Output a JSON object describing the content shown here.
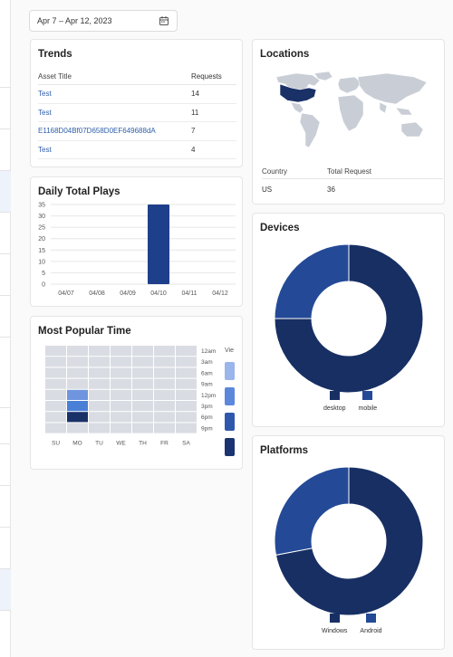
{
  "date_range": {
    "label": "Apr 7 – Apr 12, 2023"
  },
  "trends": {
    "title": "Trends",
    "col_asset": "Asset Title",
    "col_requests": "Requests",
    "rows": [
      {
        "asset": "Test",
        "requests": "14"
      },
      {
        "asset": "Test",
        "requests": "11"
      },
      {
        "asset": "E1168D04Bf07D658D0EF649688dA",
        "requests": "7"
      },
      {
        "asset": "Test",
        "requests": "4"
      }
    ]
  },
  "daily": {
    "title": "Daily Total Plays",
    "chart_data": {
      "type": "bar",
      "categories": [
        "04/07",
        "04/08",
        "04/09",
        "04/10",
        "04/11",
        "04/12"
      ],
      "values": [
        0,
        0,
        0,
        35,
        0,
        0
      ],
      "ylim": [
        0,
        35
      ],
      "yticks": [
        "0",
        "5",
        "10",
        "15",
        "20",
        "25",
        "30",
        "35"
      ],
      "color": "#1e3f8a"
    }
  },
  "popular": {
    "title": "Most Popular Time",
    "days": [
      "SU",
      "MO",
      "TU",
      "WE",
      "TH",
      "FR",
      "SA"
    ],
    "hours": [
      "12am",
      "3am",
      "6am",
      "9am",
      "12pm",
      "3pm",
      "6pm",
      "9pm"
    ],
    "legend_label": "Vie",
    "highlight": [
      {
        "day": 1,
        "slot": 4,
        "color": "#6e95de"
      },
      {
        "day": 1,
        "slot": 5,
        "color": "#4a7fd6"
      },
      {
        "day": 1,
        "slot": 6,
        "color": "#1a3168"
      }
    ],
    "legend_colors": [
      "#9ab6ea",
      "#5b88db",
      "#2f58ad",
      "#1b3370"
    ]
  },
  "locations": {
    "title": "Locations",
    "col_country": "Country",
    "col_total": "Total Request",
    "rows": [
      {
        "country": "US",
        "total": "36"
      }
    ]
  },
  "devices": {
    "title": "Devices",
    "chart_data": {
      "type": "pie",
      "slices": [
        {
          "label": "desktop",
          "value": 75,
          "color": "#172f63"
        },
        {
          "label": "mobile",
          "value": 25,
          "color": "#244a97"
        }
      ]
    }
  },
  "platforms": {
    "title": "Platforms",
    "chart_data": {
      "type": "pie",
      "slices": [
        {
          "label": "Windows",
          "value": 72,
          "color": "#172f63"
        },
        {
          "label": "Android",
          "value": 28,
          "color": "#244a97"
        }
      ]
    }
  }
}
